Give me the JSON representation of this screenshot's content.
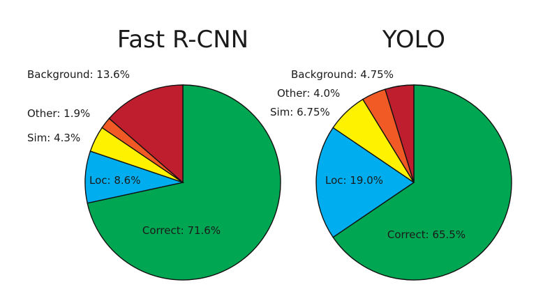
{
  "chart_data": [
    {
      "type": "pie",
      "title": "Fast R-CNN",
      "slices": [
        {
          "label": "Correct",
          "value": 71.6,
          "text": "Correct: 71.6%",
          "color": "#00A651"
        },
        {
          "label": "Loc",
          "value": 8.6,
          "text": "Loc: 8.6%",
          "color": "#00AEEF"
        },
        {
          "label": "Sim",
          "value": 4.3,
          "text": "Sim: 4.3%",
          "color": "#FFF200"
        },
        {
          "label": "Other",
          "value": 1.9,
          "text": "Other: 1.9%",
          "color": "#F15A24"
        },
        {
          "label": "Background",
          "value": 13.6,
          "text": "Background: 13.6%",
          "color": "#BE1E2D"
        }
      ]
    },
    {
      "type": "pie",
      "title": "YOLO",
      "slices": [
        {
          "label": "Correct",
          "value": 65.5,
          "text": "Correct: 65.5%",
          "color": "#00A651"
        },
        {
          "label": "Loc",
          "value": 19.0,
          "text": "Loc: 19.0%",
          "color": "#00AEEF"
        },
        {
          "label": "Sim",
          "value": 6.75,
          "text": "Sim: 6.75%",
          "color": "#FFF200"
        },
        {
          "label": "Other",
          "value": 4.0,
          "text": "Other: 4.0%",
          "color": "#F15A24"
        },
        {
          "label": "Background",
          "value": 4.75,
          "text": "Background: 4.75%",
          "color": "#BE1E2D"
        }
      ]
    }
  ]
}
